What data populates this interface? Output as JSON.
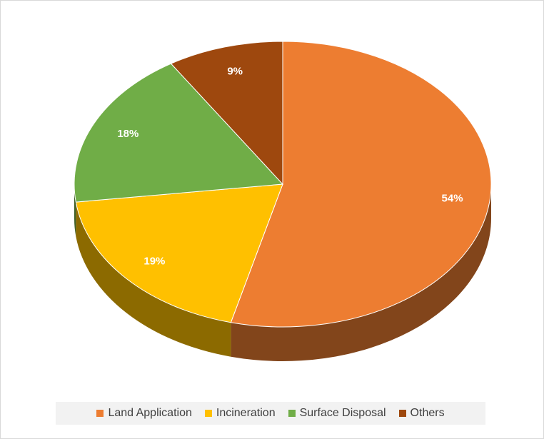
{
  "chart_data": {
    "type": "pie",
    "categories": [
      "Land Application",
      "Incineration",
      "Surface Disposal",
      "Others"
    ],
    "values": [
      54,
      19,
      18,
      9
    ],
    "value_labels": [
      "54%",
      "19%",
      "18%",
      "9%"
    ],
    "colors": [
      "#ed7d31",
      "#ffc000",
      "#70ad47",
      "#9e480e"
    ],
    "legend": "bottom"
  }
}
